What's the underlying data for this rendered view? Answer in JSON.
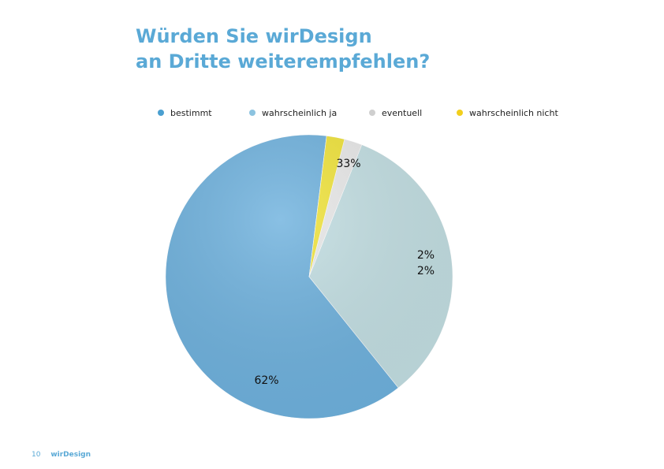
{
  "title": {
    "line1": "Würden Sie wirDesign",
    "line2": "an Dritte weiterempfehlen?"
  },
  "colors": {
    "title": "#5aa9d6",
    "slices": [
      "#6fb2de",
      "#c3dfe3",
      "#e9e9e9",
      "#f1e43a"
    ],
    "legend_dots": [
      "#4a9fd0",
      "#8cc3e0",
      "#cfcfcf",
      "#f2cf1d"
    ]
  },
  "chart_data": {
    "type": "pie",
    "legend_position": "top",
    "categories": [
      "bestimmt",
      "wahrscheinlich ja",
      "eventuell",
      "wahrscheinlich nicht"
    ],
    "values": [
      62,
      33,
      2,
      2
    ],
    "value_labels": [
      "62%",
      "33%",
      "2%",
      "2%"
    ]
  },
  "footer": {
    "page_number": "10",
    "brand": "wirDesign"
  }
}
